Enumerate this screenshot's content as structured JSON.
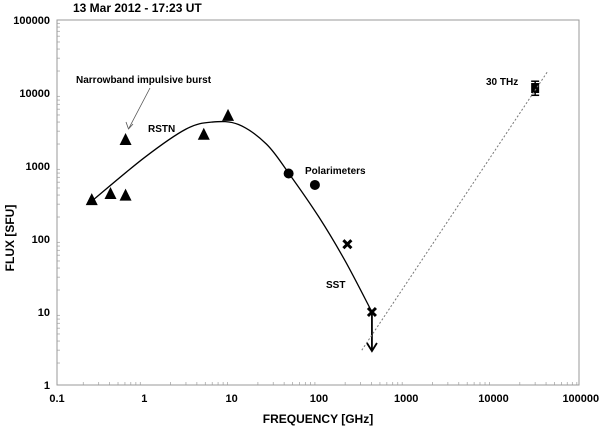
{
  "chart_data": {
    "type": "scatter",
    "title": "13 Mar 2012 - 17:23 UT",
    "xlabel": "FREQUENCY  [GHz]",
    "ylabel": "FLUX  [SFU]",
    "xscale": "log",
    "yscale": "log",
    "xlim": [
      0.1,
      100000
    ],
    "ylim": [
      1,
      100000
    ],
    "xticks": [
      "0.1",
      "1",
      "10",
      "100",
      "1000",
      "10000",
      "100000"
    ],
    "yticks": [
      "1",
      "10",
      "100",
      "1000",
      "10000",
      "100000"
    ],
    "grid": false,
    "series": [
      {
        "name": "RSTN",
        "marker": "triangle",
        "points": [
          [
            0.25,
            330
          ],
          [
            0.41,
            400
          ],
          [
            0.61,
            380
          ],
          [
            0.61,
            2200
          ],
          [
            4.8,
            2600
          ],
          [
            9.1,
            4700
          ]
        ]
      },
      {
        "name": "Polarimeters",
        "marker": "circle",
        "points": [
          [
            45,
            790
          ],
          [
            90,
            550
          ]
        ]
      },
      {
        "name": "SST",
        "marker": "x",
        "points": [
          [
            212,
            85
          ],
          [
            405,
            10
          ]
        ],
        "upper_limit_at": 405
      },
      {
        "name": "30 THz",
        "marker": "square",
        "points": [
          [
            30000,
            11700
          ]
        ],
        "error": [
          9300,
          14500
        ]
      },
      {
        "name": "fit",
        "style": "solid-line",
        "points": [
          [
            0.25,
            330
          ],
          [
            1,
            1300
          ],
          [
            3,
            3200
          ],
          [
            6,
            4000
          ],
          [
            12,
            3700
          ],
          [
            25,
            2000
          ],
          [
            45,
            800
          ],
          [
            100,
            200
          ],
          [
            200,
            50
          ],
          [
            405,
            10
          ]
        ]
      },
      {
        "name": "power-law",
        "style": "dotted-line",
        "points": [
          [
            310,
            3
          ],
          [
            42000,
            20000
          ]
        ]
      }
    ],
    "annotations": [
      "Narrowband impulsive burst",
      "RSTN",
      "Polarimeters",
      "SST",
      "30 THz"
    ]
  },
  "labels": {
    "title": "13 Mar 2012 - 17:23 UT",
    "xlabel": "FREQUENCY  [GHz]",
    "ylabel": "FLUX  [SFU]",
    "narrowband": "Narrowband impulsive burst",
    "rstn": "RSTN",
    "polarimeters": "Polarimeters",
    "sst": "SST",
    "thz": "30 THz"
  }
}
